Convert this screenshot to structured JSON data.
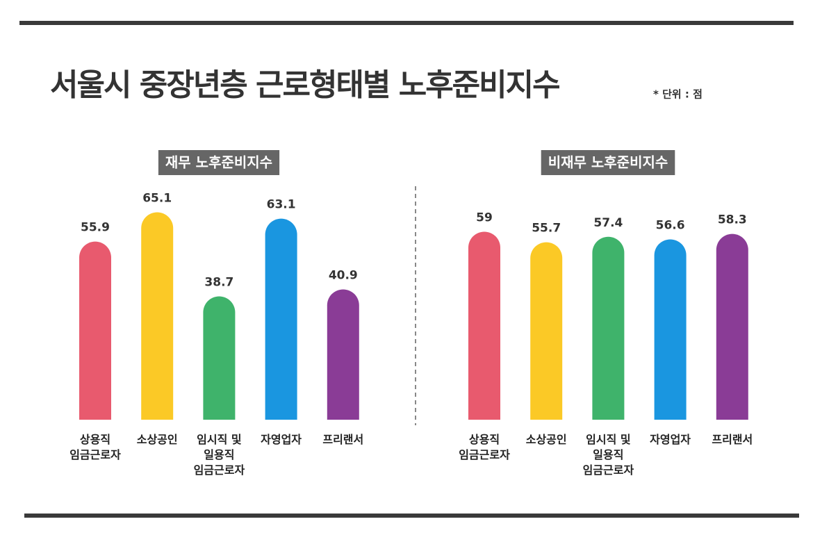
{
  "title": "서울시 중장년층 근로형태별 노후준비지수",
  "unit": "* 단위 : 점",
  "chart_data": [
    {
      "type": "bar",
      "title": "재무 노후준비지수",
      "categories": [
        "상용직\n임금근로자",
        "소상공인",
        "임시직 및\n일용직\n임금근로자",
        "자영업자",
        "프리랜서"
      ],
      "values": [
        55.9,
        65.1,
        38.7,
        63.1,
        40.9
      ],
      "colors": [
        "#e85a6e",
        "#fbc926",
        "#3fb36b",
        "#1a96e0",
        "#8a3c96"
      ],
      "ylim": [
        0,
        70
      ]
    },
    {
      "type": "bar",
      "title": "비재무 노후준비지수",
      "categories": [
        "상용직\n임금근로자",
        "소상공인",
        "임시직 및\n일용직\n임금근로자",
        "자영업자",
        "프리랜서"
      ],
      "values": [
        59,
        55.7,
        57.4,
        56.6,
        58.3
      ],
      "colors": [
        "#e85a6e",
        "#fbc926",
        "#3fb36b",
        "#1a96e0",
        "#8a3c96"
      ],
      "ylim": [
        0,
        70
      ]
    }
  ]
}
